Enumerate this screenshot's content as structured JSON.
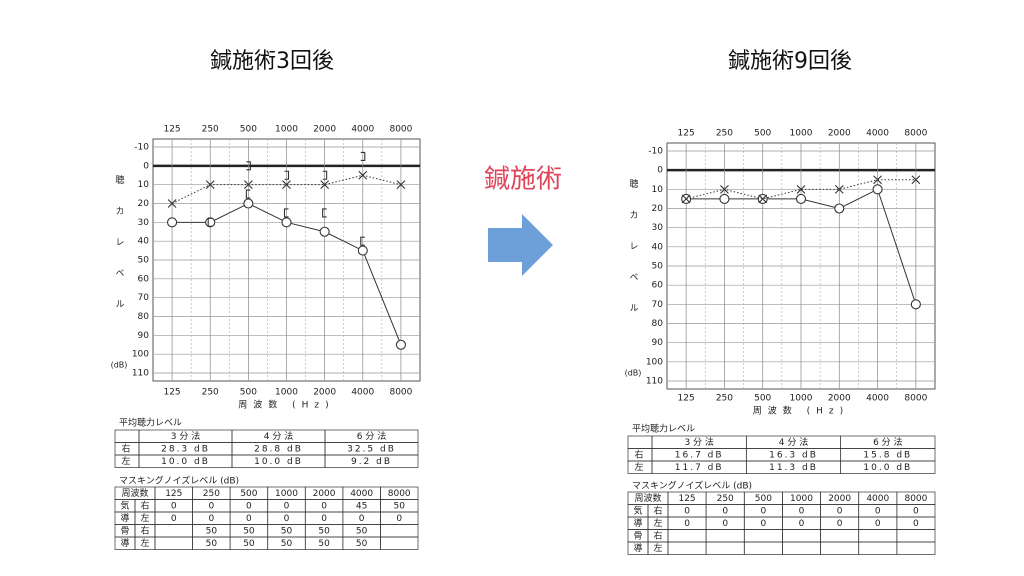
{
  "slide": {
    "arrow_label": "鍼施術"
  },
  "chart_data": [
    {
      "type": "line",
      "title": "鍼施術3回後",
      "categories": [
        "125",
        "250",
        "500",
        "1000",
        "2000",
        "4000",
        "8000"
      ],
      "ylim": [
        110,
        -10
      ],
      "yticks": [
        -10,
        0,
        10,
        20,
        30,
        40,
        50,
        60,
        70,
        80,
        90,
        100,
        110
      ],
      "grid": true,
      "thick_line_at": 0,
      "ylabel": "聴カレベル",
      "ylabel_unit": "(dB)",
      "xlabel": "周波数 (Hz)",
      "series": [
        {
          "marker": "circle",
          "line": "solid",
          "color": "#333333",
          "values": [
            30,
            30,
            20,
            30,
            35,
            45,
            95
          ]
        },
        {
          "marker": "x",
          "line": "dotted",
          "color": "#333333",
          "values": [
            20,
            10,
            10,
            10,
            10,
            5,
            10
          ]
        },
        {
          "marker": "bracket-left",
          "line": "none",
          "color": "#333333",
          "values": [
            null,
            30,
            15,
            25,
            25,
            40,
            null
          ]
        },
        {
          "marker": "bracket-right",
          "line": "none",
          "color": "#333333",
          "values": [
            null,
            null,
            0,
            5,
            5,
            -5,
            null
          ]
        }
      ]
    },
    {
      "type": "line",
      "title": "鍼施術9回後",
      "categories": [
        "125",
        "250",
        "500",
        "1000",
        "2000",
        "4000",
        "8000"
      ],
      "ylim": [
        110,
        -10
      ],
      "yticks": [
        -10,
        0,
        10,
        20,
        30,
        40,
        50,
        60,
        70,
        80,
        90,
        100,
        110
      ],
      "grid": true,
      "thick_line_at": 0,
      "ylabel": "聴カレベル",
      "ylabel_unit": "(dB)",
      "xlabel": "周波数 (Hz)",
      "series": [
        {
          "marker": "circle",
          "line": "solid",
          "color": "#333333",
          "values": [
            15,
            15,
            15,
            15,
            20,
            10,
            70
          ]
        },
        {
          "marker": "x",
          "line": "dotted",
          "color": "#333333",
          "values": [
            15,
            10,
            15,
            10,
            10,
            5,
            5
          ]
        }
      ]
    }
  ],
  "tables": [
    {
      "average": {
        "title": "平均聴力レベル",
        "header": [
          "3 分 法",
          "4 分 法",
          "6 分 法"
        ],
        "rows": [
          [
            "右",
            "28.3 dB",
            "28.8 dB",
            "32.5 dB"
          ],
          [
            "左",
            "10.0 dB",
            "10.0 dB",
            "9.2 dB"
          ]
        ]
      },
      "masking": {
        "title": "マスキングノイズレベル (dB)",
        "header": [
          "周波数",
          "125",
          "250",
          "500",
          "1000",
          "2000",
          "4000",
          "8000"
        ],
        "rows": [
          {
            "group": "気",
            "side": "右",
            "cells": [
              0,
              0,
              0,
              0,
              0,
              45,
              50
            ]
          },
          {
            "group": "導",
            "side": "左",
            "cells": [
              0,
              0,
              0,
              0,
              0,
              0,
              0
            ]
          },
          {
            "group": "骨",
            "side": "右",
            "cells": [
              null,
              50,
              50,
              50,
              50,
              50,
              null
            ]
          },
          {
            "group": "導",
            "side": "左",
            "cells": [
              null,
              50,
              50,
              50,
              50,
              50,
              null
            ]
          }
        ]
      }
    },
    {
      "average": {
        "title": "平均聴力レベル",
        "header": [
          "3 分 法",
          "4 分 法",
          "6 分 法"
        ],
        "rows": [
          [
            "右",
            "16.7 dB",
            "16.3 dB",
            "15.8 dB"
          ],
          [
            "左",
            "11.7 dB",
            "11.3 dB",
            "10.0 dB"
          ]
        ]
      },
      "masking": {
        "title": "マスキングノイズレベル (dB)",
        "header": [
          "周波数",
          "125",
          "250",
          "500",
          "1000",
          "2000",
          "4000",
          "8000"
        ],
        "rows": [
          {
            "group": "気",
            "side": "右",
            "cells": [
              0,
              0,
              0,
              0,
              0,
              0,
              0
            ]
          },
          {
            "group": "導",
            "side": "左",
            "cells": [
              0,
              0,
              0,
              0,
              0,
              0,
              0
            ]
          },
          {
            "group": "骨",
            "side": "右",
            "cells": [
              null,
              null,
              null,
              null,
              null,
              null,
              null
            ]
          },
          {
            "group": "導",
            "side": "左",
            "cells": [
              null,
              null,
              null,
              null,
              null,
              null,
              null
            ]
          }
        ]
      }
    }
  ]
}
